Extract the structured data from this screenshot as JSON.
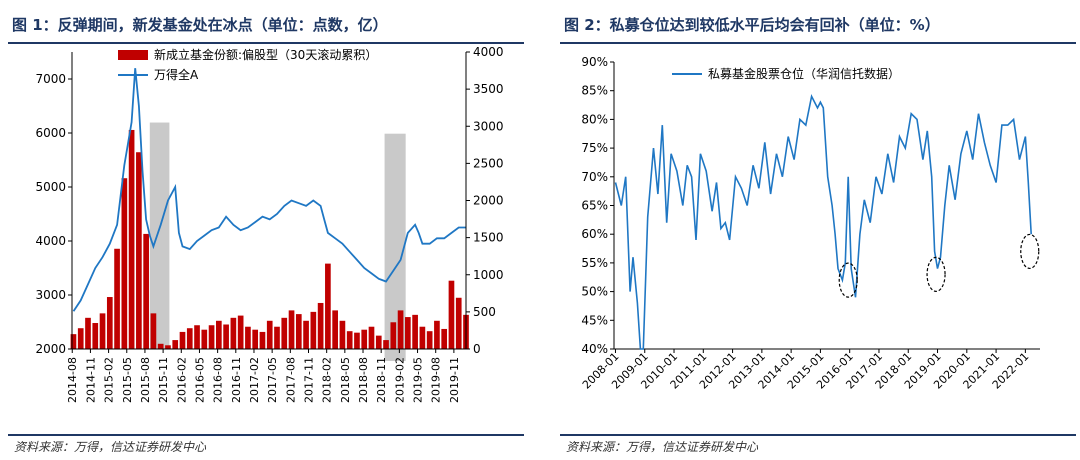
{
  "chart_data": [
    {
      "type": "bar+line",
      "title": "图 1：反弹期间，新发基金处在冰点（单位：点数，亿）",
      "source": "资料来源：万得，信达证券研发中心",
      "x_labels": [
        "2014-08",
        "2014-11",
        "2015-02",
        "2015-05",
        "2015-08",
        "2015-11",
        "2016-02",
        "2016-05",
        "2016-08",
        "2016-11",
        "2017-02",
        "2017-05",
        "2017-08",
        "2017-11",
        "2018-02",
        "2018-05",
        "2018-08",
        "2018-11",
        "2019-02",
        "2019-05",
        "2019-08",
        "2019-11"
      ],
      "left_axis": {
        "ylim": [
          2000,
          7500
        ],
        "ticks": [
          2000,
          3000,
          4000,
          5000,
          6000,
          7000
        ]
      },
      "right_axis": {
        "ylim": [
          0,
          4000
        ],
        "ticks": [
          0,
          500,
          1000,
          1500,
          2000,
          2500,
          3000,
          3500,
          4000
        ]
      },
      "legend_position": "top-center",
      "shaded_periods": [
        [
          2015.65,
          2015.92
        ],
        [
          2018.88,
          2019.17
        ]
      ],
      "series": [
        {
          "name": "新成立基金份额:偏股型（30天滚动累积）",
          "kind": "bar",
          "axis": "right",
          "color": "#c00000",
          "x": [
            2014.6,
            2014.7,
            2014.8,
            2014.9,
            2015.0,
            2015.1,
            2015.2,
            2015.3,
            2015.4,
            2015.5,
            2015.6,
            2015.7,
            2015.8,
            2015.9,
            2016.0,
            2016.1,
            2016.2,
            2016.3,
            2016.4,
            2016.5,
            2016.6,
            2016.7,
            2016.8,
            2016.9,
            2017.0,
            2017.1,
            2017.2,
            2017.3,
            2017.4,
            2017.5,
            2017.6,
            2017.7,
            2017.8,
            2017.9,
            2018.0,
            2018.1,
            2018.2,
            2018.3,
            2018.4,
            2018.5,
            2018.6,
            2018.7,
            2018.8,
            2018.9,
            2019.0,
            2019.1,
            2019.2,
            2019.3,
            2019.4,
            2019.5,
            2019.6,
            2019.7,
            2019.8,
            2019.9,
            2020.0
          ],
          "y": [
            200,
            280,
            420,
            350,
            480,
            700,
            1350,
            2300,
            2950,
            2650,
            1550,
            480,
            70,
            50,
            120,
            230,
            280,
            320,
            260,
            320,
            380,
            330,
            420,
            450,
            300,
            260,
            230,
            380,
            300,
            420,
            520,
            470,
            380,
            500,
            620,
            1150,
            520,
            380,
            240,
            220,
            260,
            300,
            180,
            120,
            360,
            520,
            430,
            460,
            300,
            240,
            380,
            270,
            920,
            690,
            460
          ]
        },
        {
          "name": "万得全A",
          "kind": "line",
          "axis": "left",
          "color": "#1f77c4",
          "x": [
            2014.6,
            2014.7,
            2014.8,
            2014.9,
            2015.0,
            2015.1,
            2015.2,
            2015.3,
            2015.4,
            2015.45,
            2015.5,
            2015.55,
            2015.6,
            2015.65,
            2015.7,
            2015.8,
            2015.9,
            2016.0,
            2016.05,
            2016.1,
            2016.2,
            2016.3,
            2016.4,
            2016.5,
            2016.6,
            2016.7,
            2016.8,
            2016.9,
            2017.0,
            2017.1,
            2017.2,
            2017.3,
            2017.4,
            2017.5,
            2017.6,
            2017.7,
            2017.8,
            2017.9,
            2018.0,
            2018.05,
            2018.1,
            2018.2,
            2018.3,
            2018.4,
            2018.5,
            2018.6,
            2018.7,
            2018.8,
            2018.9,
            2019.0,
            2019.1,
            2019.2,
            2019.3,
            2019.35,
            2019.4,
            2019.5,
            2019.6,
            2019.7,
            2019.8,
            2019.9,
            2020.0
          ],
          "y": [
            2700,
            2900,
            3200,
            3500,
            3700,
            3950,
            4300,
            5400,
            6200,
            7200,
            6500,
            5300,
            4400,
            4100,
            3900,
            4300,
            4750,
            5000,
            4150,
            3900,
            3850,
            4000,
            4100,
            4200,
            4250,
            4450,
            4300,
            4200,
            4250,
            4350,
            4450,
            4400,
            4500,
            4650,
            4750,
            4700,
            4650,
            4750,
            4650,
            4400,
            4150,
            4050,
            3950,
            3800,
            3650,
            3500,
            3400,
            3300,
            3250,
            3450,
            3650,
            4150,
            4300,
            4150,
            3950,
            3950,
            4050,
            4050,
            4150,
            4250,
            4250
          ]
        }
      ]
    },
    {
      "type": "line",
      "title": "图 2：私募仓位达到较低水平后均会有回补（单位：%）",
      "source": "资料来源：万得，信达证券研发中心",
      "x_labels": [
        "2008-01",
        "2009-01",
        "2010-01",
        "2011-01",
        "2012-01",
        "2013-01",
        "2014-01",
        "2015-01",
        "2016-01",
        "2017-01",
        "2018-01",
        "2019-01",
        "2020-01",
        "2021-01",
        "2022-01"
      ],
      "ylim": [
        40,
        90
      ],
      "ticks": [
        "40%",
        "45%",
        "50%",
        "55%",
        "60%",
        "65%",
        "70%",
        "75%",
        "80%",
        "85%",
        "90%"
      ],
      "legend_position": "top-center",
      "circled_lows": [
        [
          2015.95,
          52
        ],
        [
          2018.95,
          53
        ],
        [
          2022.15,
          57
        ]
      ],
      "series": [
        {
          "name": "私募基金股票仓位（华润信托数据）",
          "color": "#1f77c4",
          "x": [
            2008.0,
            2008.2,
            2008.35,
            2008.5,
            2008.6,
            2008.75,
            2008.85,
            2008.95,
            2009.1,
            2009.3,
            2009.45,
            2009.6,
            2009.75,
            2009.9,
            2010.1,
            2010.3,
            2010.45,
            2010.6,
            2010.75,
            2010.9,
            2011.1,
            2011.3,
            2011.45,
            2011.6,
            2011.75,
            2011.9,
            2012.1,
            2012.3,
            2012.5,
            2012.7,
            2012.9,
            2013.1,
            2013.3,
            2013.5,
            2013.7,
            2013.9,
            2014.1,
            2014.3,
            2014.5,
            2014.7,
            2014.9,
            2015.0,
            2015.1,
            2015.25,
            2015.4,
            2015.5,
            2015.6,
            2015.75,
            2015.85,
            2015.95,
            2016.05,
            2016.2,
            2016.35,
            2016.5,
            2016.7,
            2016.9,
            2017.1,
            2017.3,
            2017.5,
            2017.7,
            2017.9,
            2018.1,
            2018.3,
            2018.5,
            2018.65,
            2018.8,
            2018.9,
            2019.0,
            2019.1,
            2019.25,
            2019.4,
            2019.6,
            2019.8,
            2020.0,
            2020.2,
            2020.4,
            2020.6,
            2020.8,
            2021.0,
            2021.2,
            2021.4,
            2021.6,
            2021.8,
            2022.0,
            2022.1,
            2022.2
          ],
          "y": [
            69,
            65,
            70,
            50,
            56,
            48,
            40,
            40,
            63,
            75,
            67,
            79,
            62,
            74,
            71,
            65,
            72,
            70,
            59,
            74,
            71,
            64,
            69,
            61,
            62,
            59,
            70,
            68,
            65,
            72,
            68,
            76,
            67,
            74,
            70,
            77,
            73,
            80,
            79,
            84,
            82,
            83,
            82,
            70,
            65,
            60,
            54,
            52,
            55,
            70,
            54,
            49,
            60,
            66,
            62,
            70,
            67,
            74,
            69,
            77,
            75,
            81,
            80,
            73,
            78,
            70,
            57,
            54,
            56,
            65,
            72,
            66,
            74,
            78,
            73,
            81,
            76,
            72,
            69,
            79,
            79,
            80,
            73,
            77,
            69,
            60
          ]
        }
      ]
    }
  ]
}
